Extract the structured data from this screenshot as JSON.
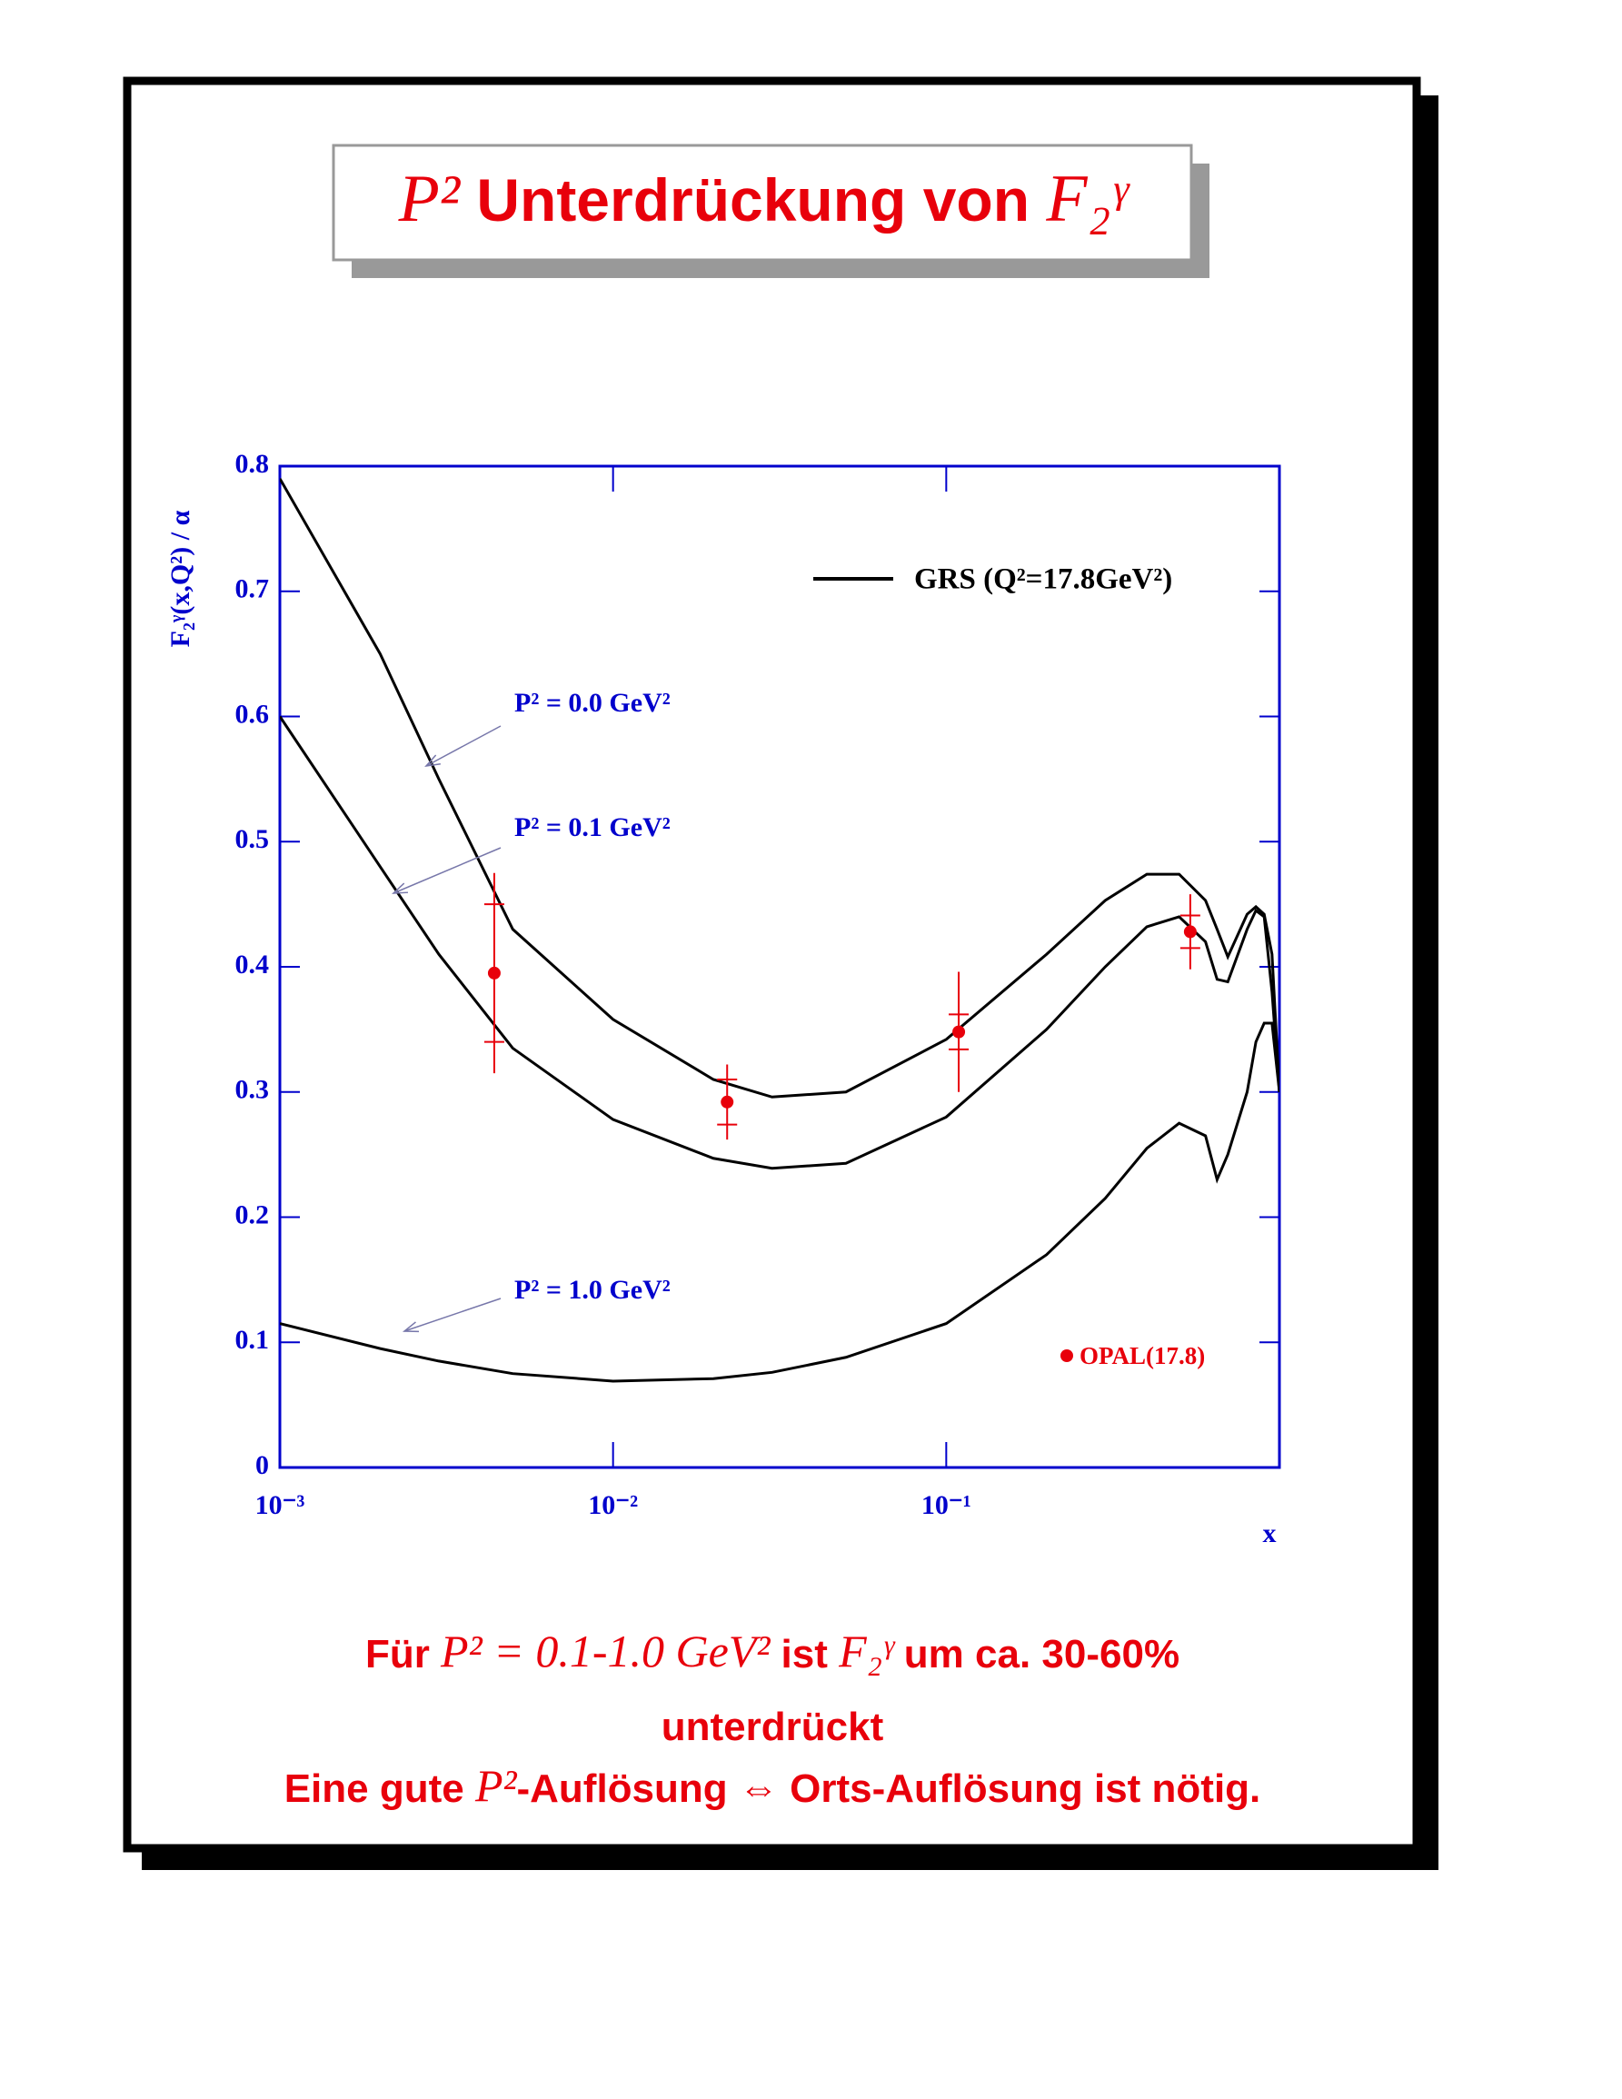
{
  "chart_data": {
    "type": "line",
    "title": {
      "math1": "P²",
      "text": "Unterdrückung von",
      "math2": "F₂ᵞ"
    },
    "x_label": "x",
    "y_label": "F₂ᵞ(x,Q²) / α",
    "log_x": true,
    "xlim": [
      0.001,
      1
    ],
    "ylim": [
      0,
      0.8
    ],
    "xticks": [
      {
        "value": 0.001,
        "label": "10⁻³"
      },
      {
        "value": 0.01,
        "label": "10⁻²"
      },
      {
        "value": 0.1,
        "label": "10⁻¹"
      }
    ],
    "yticks": [
      0,
      0.1,
      0.2,
      0.3,
      0.4,
      0.5,
      0.6,
      0.7,
      0.8
    ],
    "x": [
      0.001,
      0.002,
      0.003,
      0.005,
      0.01,
      0.02,
      0.03,
      0.05,
      0.1,
      0.2,
      0.3,
      0.4,
      0.5,
      0.6,
      0.65,
      0.7,
      0.8,
      0.85,
      0.9,
      0.95,
      1
    ],
    "series": [
      {
        "name": "P² = 0.0 GeV²",
        "color": "#000000",
        "values": [
          0.79,
          0.65,
          0.55,
          0.43,
          0.358,
          0.31,
          0.296,
          0.3,
          0.342,
          0.41,
          0.453,
          0.474,
          0.474,
          0.453,
          0.43,
          0.408,
          0.442,
          0.448,
          0.442,
          0.41,
          0.3
        ]
      },
      {
        "name": "P² = 0.1 GeV²",
        "color": "#000000",
        "values": [
          0.6,
          0.48,
          0.41,
          0.335,
          0.278,
          0.247,
          0.239,
          0.243,
          0.28,
          0.35,
          0.4,
          0.432,
          0.44,
          0.42,
          0.39,
          0.388,
          0.43,
          0.445,
          0.44,
          0.38,
          0.3
        ]
      },
      {
        "name": "P² = 1.0 GeV²",
        "color": "#000000",
        "values": [
          0.115,
          0.095,
          0.085,
          0.075,
          0.069,
          0.071,
          0.076,
          0.088,
          0.115,
          0.17,
          0.215,
          0.255,
          0.275,
          0.265,
          0.23,
          0.25,
          0.3,
          0.34,
          0.355,
          0.355,
          0.3
        ]
      }
    ],
    "line_legend": "GRS (Q²=17.8GeV²)",
    "points": {
      "name": "OPAL(17.8)",
      "color": "#e8000b",
      "x": [
        0.0044,
        0.022,
        0.109,
        0.54
      ],
      "values": [
        0.395,
        0.292,
        0.348,
        0.428
      ],
      "errors": [
        0.08,
        0.03,
        0.048,
        0.03
      ],
      "stat_errors": [
        0.055,
        0.018,
        0.014,
        0.013
      ]
    },
    "notes": [
      [
        "Für ",
        "P² = 0.1-1.0 GeV²",
        " ist ",
        "F₂ᵞ",
        " um ca. 30-60%"
      ],
      [
        "unterdrückt"
      ],
      [
        "Eine gute ",
        "P²",
        "-Auflösung ⇔ Orts-Auflösung ist nötig."
      ]
    ]
  }
}
